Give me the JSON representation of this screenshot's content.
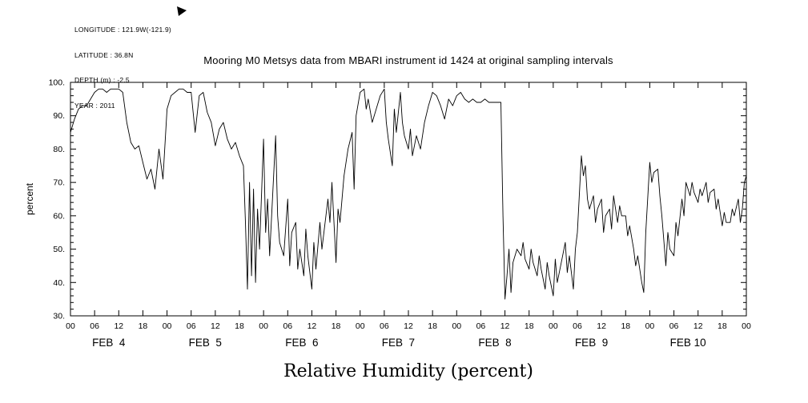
{
  "info_block": {
    "lines": [
      "LONGITUDE : 121.9W(-121.9)",
      "LATITUDE : 36.8N",
      "DEPTH (m) : -2.5",
      "YEAR : 2011"
    ]
  },
  "chart_data": {
    "type": "line",
    "title": "Mooring M0 Metsys data from MBARI instrument id 1424 at original sampling intervals",
    "xlabel_bottom": "Relative Humidity (percent)",
    "ylabel": "percent",
    "ylim": [
      30,
      100
    ],
    "y_major_ticks": [
      30,
      40,
      50,
      60,
      70,
      80,
      90,
      100
    ],
    "y_tick_labels": [
      "30.",
      "40.",
      "50.",
      "60.",
      "70.",
      "80.",
      "90.",
      "100."
    ],
    "y_minor_step": 2,
    "x_hours_span": 168,
    "x_tick_interval_hours": 6,
    "x_tick_labels_cycle": [
      "00",
      "06",
      "12",
      "18"
    ],
    "day_labels": [
      "FEB  4",
      "FEB  5",
      "FEB  6",
      "FEB  7",
      "FEB  8",
      "FEB  9",
      "FEB 10"
    ],
    "day_label_center_hour": 9.5,
    "line_color": "#000000",
    "grid": false,
    "legend": "none",
    "series": [
      {
        "name": "relative_humidity",
        "units": "percent",
        "x_units": "hours since 2011-02-04 00:00",
        "points": [
          [
            0,
            85
          ],
          [
            1,
            89
          ],
          [
            2,
            92
          ],
          [
            3,
            93
          ],
          [
            4,
            93
          ],
          [
            5,
            95
          ],
          [
            6,
            97
          ],
          [
            7,
            98
          ],
          [
            8,
            98
          ],
          [
            9,
            97
          ],
          [
            10,
            98
          ],
          [
            11,
            98
          ],
          [
            12,
            98
          ],
          [
            13,
            97
          ],
          [
            14,
            88
          ],
          [
            15,
            82
          ],
          [
            16,
            80
          ],
          [
            17,
            81
          ],
          [
            18,
            76
          ],
          [
            19,
            71
          ],
          [
            20,
            74
          ],
          [
            21,
            68
          ],
          [
            22,
            80
          ],
          [
            23,
            71
          ],
          [
            24,
            92
          ],
          [
            25,
            96
          ],
          [
            26,
            97
          ],
          [
            27,
            98
          ],
          [
            28,
            98
          ],
          [
            29,
            97
          ],
          [
            30,
            97
          ],
          [
            31,
            85
          ],
          [
            32,
            96
          ],
          [
            33,
            97
          ],
          [
            34,
            91
          ],
          [
            35,
            88
          ],
          [
            36,
            81
          ],
          [
            37,
            86
          ],
          [
            38,
            88
          ],
          [
            39,
            83
          ],
          [
            40,
            80
          ],
          [
            41,
            82
          ],
          [
            42,
            78
          ],
          [
            43,
            75
          ],
          [
            43.5,
            58
          ],
          [
            44,
            38
          ],
          [
            44.5,
            70
          ],
          [
            45,
            42
          ],
          [
            45.5,
            68
          ],
          [
            46,
            40
          ],
          [
            46.5,
            62
          ],
          [
            47,
            50
          ],
          [
            48,
            83
          ],
          [
            48.5,
            55
          ],
          [
            49,
            65
          ],
          [
            49.5,
            48
          ],
          [
            50,
            60
          ],
          [
            51,
            84
          ],
          [
            51.5,
            60
          ],
          [
            52,
            52
          ],
          [
            53,
            48
          ],
          [
            54,
            65
          ],
          [
            54.5,
            45
          ],
          [
            55,
            55
          ],
          [
            56,
            58
          ],
          [
            56.5,
            44
          ],
          [
            57,
            50
          ],
          [
            58,
            42
          ],
          [
            58.5,
            56
          ],
          [
            59,
            48
          ],
          [
            60,
            38
          ],
          [
            60.5,
            52
          ],
          [
            61,
            44
          ],
          [
            62,
            58
          ],
          [
            62.5,
            50
          ],
          [
            63,
            55
          ],
          [
            64,
            65
          ],
          [
            64.5,
            58
          ],
          [
            65,
            70
          ],
          [
            66,
            46
          ],
          [
            66.5,
            62
          ],
          [
            67,
            58
          ],
          [
            68,
            72
          ],
          [
            69,
            80
          ],
          [
            70,
            85
          ],
          [
            70.5,
            68
          ],
          [
            71,
            90
          ],
          [
            72,
            97
          ],
          [
            73,
            98
          ],
          [
            73.5,
            92
          ],
          [
            74,
            95
          ],
          [
            75,
            88
          ],
          [
            76,
            92
          ],
          [
            77,
            96
          ],
          [
            78,
            98
          ],
          [
            78.5,
            88
          ],
          [
            79,
            83
          ],
          [
            80,
            75
          ],
          [
            80.5,
            92
          ],
          [
            81,
            85
          ],
          [
            82,
            97
          ],
          [
            82.5,
            88
          ],
          [
            83,
            84
          ],
          [
            84,
            80
          ],
          [
            84.5,
            86
          ],
          [
            85,
            78
          ],
          [
            86,
            84
          ],
          [
            87,
            80
          ],
          [
            88,
            88
          ],
          [
            89,
            93
          ],
          [
            90,
            97
          ],
          [
            91,
            96
          ],
          [
            92,
            93
          ],
          [
            93,
            89
          ],
          [
            94,
            95
          ],
          [
            95,
            93
          ],
          [
            96,
            96
          ],
          [
            97,
            97
          ],
          [
            98,
            95
          ],
          [
            99,
            94
          ],
          [
            100,
            95
          ],
          [
            101,
            94
          ],
          [
            102,
            94
          ],
          [
            103,
            95
          ],
          [
            104,
            94
          ],
          [
            105,
            94
          ],
          [
            106,
            94
          ],
          [
            107,
            94
          ],
          [
            107.5,
            60
          ],
          [
            108,
            35
          ],
          [
            108.5,
            42
          ],
          [
            109,
            50
          ],
          [
            109.5,
            37
          ],
          [
            110,
            46
          ],
          [
            111,
            50
          ],
          [
            112,
            48
          ],
          [
            112.5,
            52
          ],
          [
            113,
            47
          ],
          [
            114,
            44
          ],
          [
            114.5,
            50
          ],
          [
            115,
            46
          ],
          [
            116,
            42
          ],
          [
            116.5,
            48
          ],
          [
            117,
            44
          ],
          [
            118,
            38
          ],
          [
            118.5,
            46
          ],
          [
            119,
            42
          ],
          [
            120,
            36
          ],
          [
            120.5,
            47
          ],
          [
            121,
            40
          ],
          [
            122,
            46
          ],
          [
            123,
            52
          ],
          [
            123.5,
            43
          ],
          [
            124,
            48
          ],
          [
            125,
            38
          ],
          [
            125.5,
            50
          ],
          [
            126,
            55
          ],
          [
            127,
            78
          ],
          [
            127.5,
            72
          ],
          [
            128,
            75
          ],
          [
            128.5,
            65
          ],
          [
            129,
            62
          ],
          [
            130,
            66
          ],
          [
            130.5,
            58
          ],
          [
            131,
            62
          ],
          [
            132,
            65
          ],
          [
            132.5,
            55
          ],
          [
            133,
            60
          ],
          [
            134,
            62
          ],
          [
            134.5,
            56
          ],
          [
            135,
            66
          ],
          [
            136,
            58
          ],
          [
            136.5,
            63
          ],
          [
            137,
            60
          ],
          [
            138,
            60
          ],
          [
            138.5,
            54
          ],
          [
            139,
            57
          ],
          [
            140,
            50
          ],
          [
            140.5,
            45
          ],
          [
            141,
            48
          ],
          [
            142,
            40
          ],
          [
            142.5,
            37
          ],
          [
            143,
            55
          ],
          [
            144,
            76
          ],
          [
            144.5,
            70
          ],
          [
            145,
            73
          ],
          [
            146,
            74
          ],
          [
            146.5,
            66
          ],
          [
            147,
            60
          ],
          [
            148,
            45
          ],
          [
            148.5,
            55
          ],
          [
            149,
            50
          ],
          [
            150,
            48
          ],
          [
            150.5,
            58
          ],
          [
            151,
            54
          ],
          [
            152,
            65
          ],
          [
            152.5,
            60
          ],
          [
            153,
            70
          ],
          [
            154,
            66
          ],
          [
            154.5,
            70
          ],
          [
            155,
            67
          ],
          [
            156,
            64
          ],
          [
            156.5,
            68
          ],
          [
            157,
            66
          ],
          [
            158,
            70
          ],
          [
            158.5,
            64
          ],
          [
            159,
            67
          ],
          [
            160,
            68
          ],
          [
            160.5,
            62
          ],
          [
            161,
            65
          ],
          [
            162,
            57
          ],
          [
            162.5,
            61
          ],
          [
            163,
            58
          ],
          [
            164,
            58
          ],
          [
            164.5,
            62
          ],
          [
            165,
            60
          ],
          [
            166,
            65
          ],
          [
            166.5,
            58
          ],
          [
            167,
            62
          ],
          [
            167.5,
            70
          ],
          [
            168,
            72
          ]
        ]
      }
    ]
  }
}
